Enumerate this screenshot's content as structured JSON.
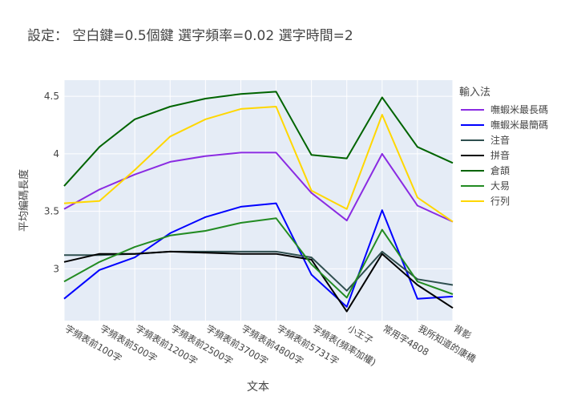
{
  "chart_data": {
    "type": "line",
    "title": "設定： 空白鍵=0.5個鍵 選字頻率=0.02 選字時間=2",
    "xlabel": "文本",
    "ylabel": "平均編碼長度",
    "legend_title": "輸入法",
    "legend_position": "right",
    "grid": true,
    "ylim": [
      2.55,
      4.64
    ],
    "yticks": [
      3,
      3.5,
      4,
      4.5
    ],
    "ytick_labels": [
      "3",
      "3.5",
      "4",
      "4.5"
    ],
    "categories": [
      "字頻表前100字",
      "字頻表前500字",
      "字頻表前1200字",
      "字頻表前2500字",
      "字頻表前3700字",
      "字頻表前4800字",
      "字頻表前5731字",
      "字頻表(頻率加權)",
      "小王子",
      "常用字4808",
      "我所知道的康橋",
      "背影"
    ],
    "series": [
      {
        "name": "嘸蝦米最長碼",
        "color": "#8a2be2",
        "values": [
          3.52,
          3.69,
          3.82,
          3.93,
          3.98,
          4.01,
          4.01,
          3.66,
          3.42,
          4.0,
          3.55,
          3.41
        ]
      },
      {
        "name": "嘸蝦米最簡碼",
        "color": "#0000ff",
        "values": [
          2.74,
          2.99,
          3.1,
          3.31,
          3.45,
          3.54,
          3.57,
          2.95,
          2.67,
          3.51,
          2.74,
          2.76
        ]
      },
      {
        "name": "注音",
        "color": "#2f4f4f",
        "values": [
          3.12,
          3.12,
          3.13,
          3.15,
          3.15,
          3.15,
          3.15,
          3.1,
          2.81,
          3.15,
          2.91,
          2.86
        ]
      },
      {
        "name": "拼音",
        "color": "#000000",
        "values": [
          3.06,
          3.13,
          3.13,
          3.15,
          3.14,
          3.13,
          3.13,
          3.08,
          2.63,
          3.13,
          2.86,
          2.66
        ]
      },
      {
        "name": "倉頡",
        "color": "#006400",
        "values": [
          3.72,
          4.06,
          4.3,
          4.41,
          4.48,
          4.52,
          4.54,
          3.99,
          3.96,
          4.49,
          4.06,
          3.92
        ]
      },
      {
        "name": "大易",
        "color": "#228b22",
        "values": [
          2.89,
          3.06,
          3.19,
          3.29,
          3.33,
          3.4,
          3.44,
          3.04,
          2.75,
          3.34,
          2.89,
          2.78
        ]
      },
      {
        "name": "行列",
        "color": "#ffd700",
        "values": [
          3.57,
          3.59,
          3.86,
          4.15,
          4.3,
          4.39,
          4.41,
          3.68,
          3.52,
          4.34,
          3.62,
          3.41
        ]
      }
    ]
  }
}
